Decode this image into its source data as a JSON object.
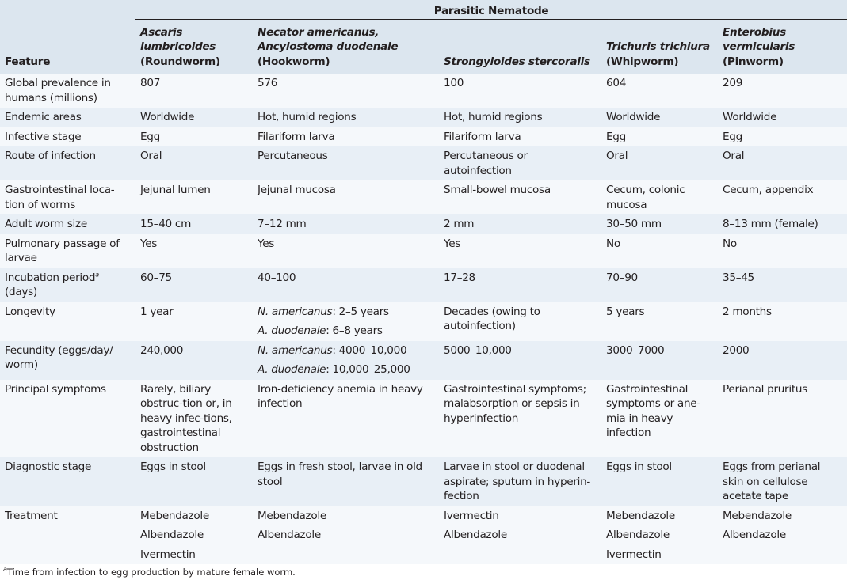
{
  "group_header": "Parasitic Nematode",
  "columns": [
    {
      "label": "Feature"
    },
    {
      "italic": "Ascaris lumbricoides",
      "common": "(Roundworm)"
    },
    {
      "italic": "Necator americanus, Ancylostoma duodenale",
      "common": "(Hookworm)"
    },
    {
      "italic": "Strongyloides stercoralis",
      "common": ""
    },
    {
      "italic": "Trichuris trichiura",
      "common": "(Whipworm)"
    },
    {
      "italic": "Enterobius vermicularis",
      "common": "(Pinworm)"
    }
  ],
  "rows": [
    {
      "feature": "Global prevalence in humans (millions)",
      "cells": [
        [
          "807"
        ],
        [
          "576"
        ],
        [
          "100"
        ],
        [
          "604"
        ],
        [
          "209"
        ]
      ]
    },
    {
      "feature": "Endemic areas",
      "cells": [
        [
          "Worldwide"
        ],
        [
          "Hot, humid regions"
        ],
        [
          "Hot, humid regions"
        ],
        [
          "Worldwide"
        ],
        [
          "Worldwide"
        ]
      ]
    },
    {
      "feature": "Infective stage",
      "cells": [
        [
          "Egg"
        ],
        [
          "Filariform larva"
        ],
        [
          "Filariform larva"
        ],
        [
          "Egg"
        ],
        [
          "Egg"
        ]
      ]
    },
    {
      "feature": "Route of infection",
      "cells": [
        [
          "Oral"
        ],
        [
          "Percutaneous"
        ],
        [
          "Percutaneous or autoinfection"
        ],
        [
          "Oral"
        ],
        [
          "Oral"
        ]
      ]
    },
    {
      "feature": "Gastrointestinal loca-tion of worms",
      "cells": [
        [
          "Jejunal lumen"
        ],
        [
          "Jejunal mucosa"
        ],
        [
          "Small-bowel mucosa"
        ],
        [
          "Cecum, colonic mucosa"
        ],
        [
          "Cecum, appendix"
        ]
      ]
    },
    {
      "feature": "Adult worm size",
      "cells": [
        [
          "15–40 cm"
        ],
        [
          "7–12 mm"
        ],
        [
          "2 mm"
        ],
        [
          "30–50 mm"
        ],
        [
          "8–13 mm (female)"
        ]
      ]
    },
    {
      "feature": "Pulmonary passage of larvae",
      "cells": [
        [
          "Yes"
        ],
        [
          "Yes"
        ],
        [
          "Yes"
        ],
        [
          "No"
        ],
        [
          "No"
        ]
      ]
    },
    {
      "feature": "Incubation period",
      "feature_sup": "a",
      "feature_after": "(days)",
      "cells": [
        [
          "60–75"
        ],
        [
          "40–100"
        ],
        [
          "17–28"
        ],
        [
          "70–90"
        ],
        [
          "35–45"
        ]
      ]
    },
    {
      "feature": "Longevity",
      "cells": [
        [
          "1 year"
        ],
        [
          "N. americanus: 2–5 years",
          "A. duodenale: 6–8 years"
        ],
        [
          "Decades (owing to autoinfection)"
        ],
        [
          "5 years"
        ],
        [
          "2 months"
        ]
      ]
    },
    {
      "feature": "Fecundity (eggs/day/ worm)",
      "cells": [
        [
          "240,000"
        ],
        [
          "N. americanus: 4000–10,000",
          "A. duodenale: 10,000–25,000"
        ],
        [
          "5000–10,000"
        ],
        [
          "3000–7000"
        ],
        [
          "2000"
        ]
      ]
    },
    {
      "feature": "Principal symptoms",
      "cells": [
        [
          "Rarely, biliary obstruc-tion or, in heavy infec-tions, gastrointestinal obstruction"
        ],
        [
          "Iron-deficiency anemia in heavy infection"
        ],
        [
          "Gastrointestinal symptoms; malabsorption or sepsis in hyperinfection"
        ],
        [
          "Gastrointestinal symptoms or ane-mia in heavy infection"
        ],
        [
          "Perianal pruritus"
        ]
      ]
    },
    {
      "feature": "Diagnostic stage",
      "cells": [
        [
          "Eggs in stool"
        ],
        [
          "Eggs in fresh stool, larvae in old stool"
        ],
        [
          "Larvae in stool or duodenal aspirate; sputum in hyperin-fection"
        ],
        [
          "Eggs in stool"
        ],
        [
          "Eggs from perianal skin on cellulose acetate tape"
        ]
      ]
    },
    {
      "feature": "Treatment",
      "cells": [
        [
          "Mebendazole",
          "Albendazole",
          "Ivermectin"
        ],
        [
          "Mebendazole",
          "Albendazole"
        ],
        [
          "Ivermectin",
          "Albendazole"
        ],
        [
          "Mebendazole",
          "Albendazole",
          "Ivermectin"
        ],
        [
          "Mebendazole",
          "Albendazole"
        ]
      ]
    }
  ],
  "footnote": {
    "mark": "a",
    "text": "Time from infection to egg production by mature female worm."
  }
}
